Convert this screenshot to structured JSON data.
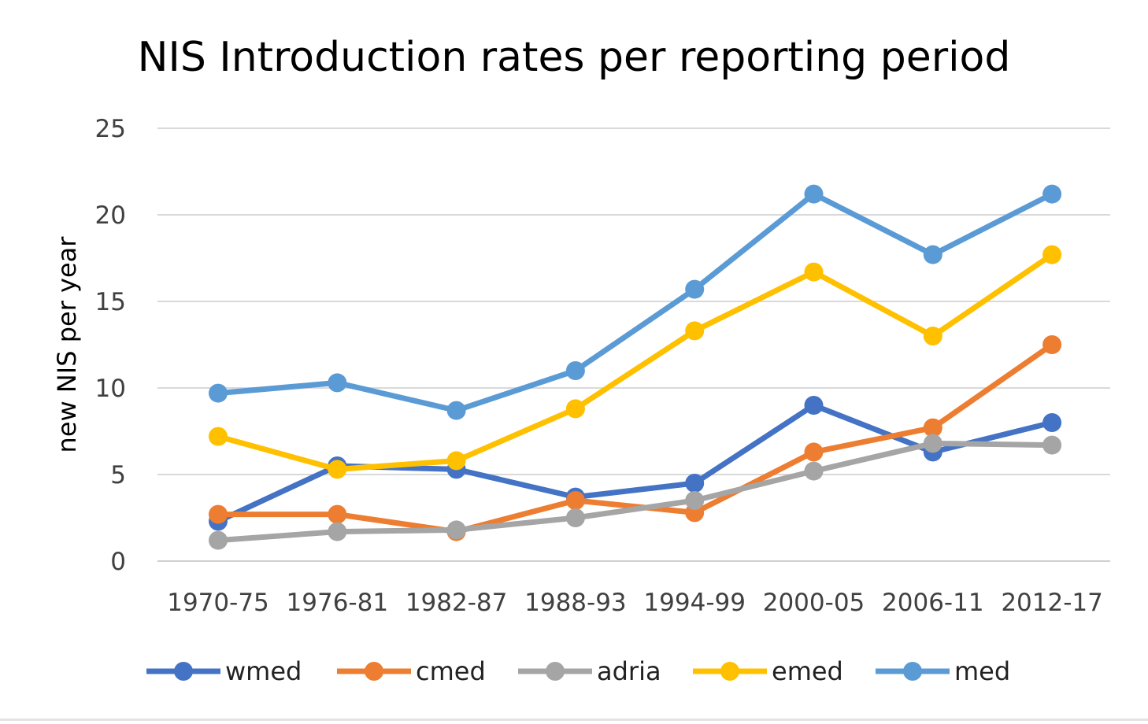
{
  "chart_data": {
    "type": "line",
    "title": "NIS Introduction rates per reporting period",
    "xlabel": "",
    "ylabel": "new NIS per year",
    "categories": [
      "1970-75",
      "1976-81",
      "1982-87",
      "1988-93",
      "1994-99",
      "2000-05",
      "2006-11",
      "2012-17"
    ],
    "ylim": [
      0,
      25
    ],
    "yticks": [
      0,
      5,
      10,
      15,
      20,
      25
    ],
    "grid": true,
    "legend": "bottom",
    "series": [
      {
        "name": "wmed",
        "color": "#4472C4",
        "values": [
          2.3,
          5.5,
          5.3,
          3.7,
          4.5,
          9.0,
          6.3,
          8.0
        ]
      },
      {
        "name": "cmed",
        "color": "#ED7D31",
        "values": [
          2.7,
          2.7,
          1.7,
          3.5,
          2.8,
          6.3,
          7.7,
          12.5
        ]
      },
      {
        "name": "adria",
        "color": "#A5A5A5",
        "values": [
          1.2,
          1.7,
          1.8,
          2.5,
          3.5,
          5.2,
          6.8,
          6.7
        ]
      },
      {
        "name": "emed",
        "color": "#FFC000",
        "values": [
          7.2,
          5.3,
          5.8,
          8.8,
          13.3,
          16.7,
          13.0,
          17.7
        ]
      },
      {
        "name": "med",
        "color": "#5B9BD5",
        "values": [
          9.7,
          10.3,
          8.7,
          11.0,
          15.7,
          21.2,
          17.7,
          21.2
        ]
      }
    ]
  }
}
